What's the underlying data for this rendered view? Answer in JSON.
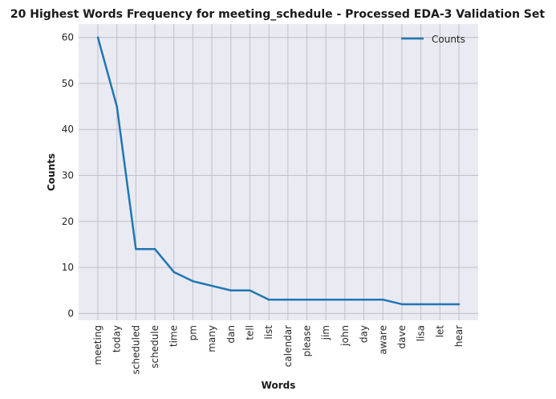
{
  "chart_data": {
    "type": "line",
    "title": "20 Highest Words Frequency for meeting_schedule - Processed EDA-3 Validation Set",
    "xlabel": "Words",
    "ylabel": "Counts",
    "categories": [
      "meeting",
      "today",
      "scheduled",
      "schedule",
      "time",
      "pm",
      "many",
      "dan",
      "tell",
      "list",
      "calendar",
      "please",
      "jim",
      "john",
      "day",
      "aware",
      "dave",
      "lisa",
      "let",
      "hear"
    ],
    "series": [
      {
        "name": "Counts",
        "values": [
          60,
          45,
          14,
          14,
          9,
          7,
          6,
          5,
          5,
          3,
          3,
          3,
          3,
          3,
          3,
          3,
          2,
          2,
          2,
          2
        ]
      }
    ],
    "ylim": [
      -1.5,
      62.9
    ],
    "yticks": [
      0,
      10,
      20,
      30,
      40,
      50,
      60
    ],
    "grid": true,
    "legend_position": "top-right",
    "colors": {
      "line": "#1f77b4",
      "plot_background": "#eaeaf2",
      "grid": "#c0c0c8"
    }
  }
}
